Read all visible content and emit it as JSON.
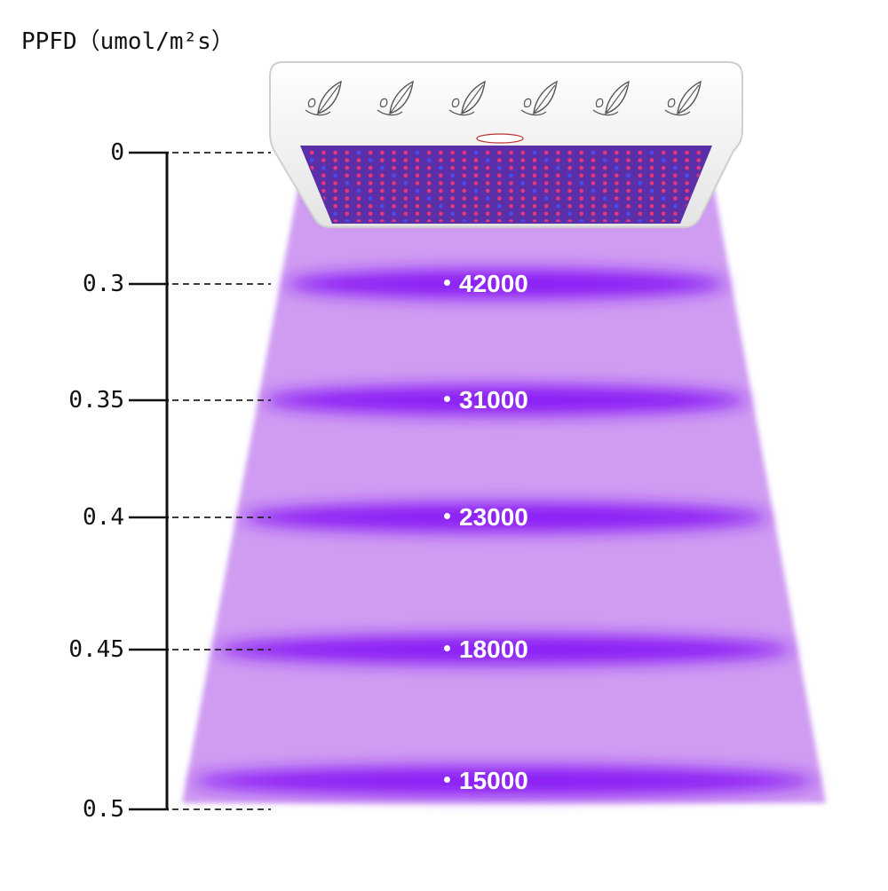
{
  "title": "PPFD（umol/m²s）",
  "colors": {
    "beam": "#cf9cf2",
    "band": "#8a1cf5",
    "panel_frame": "#f2f2f2",
    "led_red": "#e8367a",
    "led_blue": "#4b4cf0",
    "axis": "#111111"
  },
  "icons": [
    "leaf-icon",
    "leaf-icon",
    "leaf-icon",
    "leaf-icon",
    "leaf-icon",
    "leaf-icon"
  ],
  "chart_data": {
    "type": "table",
    "distances": [
      "0",
      "0.3",
      "0.35",
      "0.4",
      "0.45",
      "0.5"
    ],
    "levels": [
      {
        "distance": "0.3",
        "ppfd_label": "42000"
      },
      {
        "distance": "0.35",
        "ppfd_label": "31000"
      },
      {
        "distance": "0.4",
        "ppfd_label": "23000"
      },
      {
        "distance": "0.45",
        "ppfd_label": "18000"
      },
      {
        "distance": "0.5",
        "ppfd_label": "15000"
      }
    ]
  }
}
